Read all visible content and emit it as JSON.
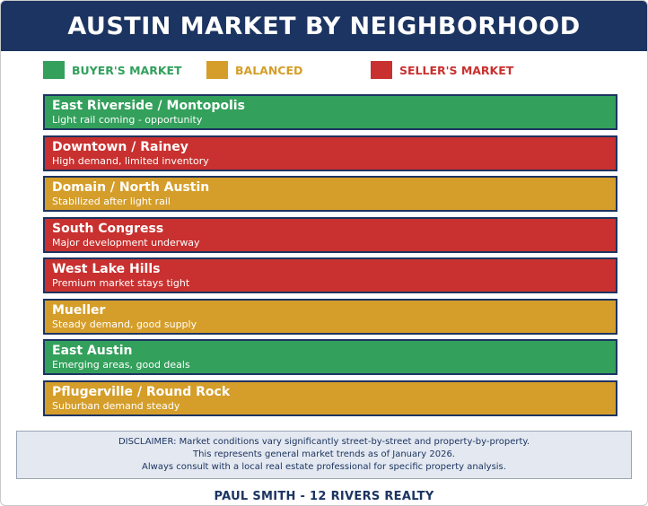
{
  "title": "AUSTIN MARKET BY NEIGHBORHOOD",
  "colors": {
    "header_bg": "#1c3461",
    "buyers": "#33a05c",
    "balanced": "#d59e2a",
    "sellers": "#c8312f",
    "border": "#1c3461"
  },
  "legend": [
    {
      "label": "BUYER'S MARKET",
      "status": "buyers",
      "color": "#33a05c"
    },
    {
      "label": "BALANCED",
      "status": "balanced",
      "color": "#d59e2a"
    },
    {
      "label": "SELLER'S MARKET",
      "status": "sellers",
      "color": "#c8312f"
    }
  ],
  "neighborhoods": [
    {
      "name": "East Riverside / Montopolis",
      "note": "Light rail coming - opportunity",
      "status": "buyers"
    },
    {
      "name": "Downtown / Rainey",
      "note": "High demand, limited inventory",
      "status": "sellers"
    },
    {
      "name": "Domain / North Austin",
      "note": "Stabilized after light rail",
      "status": "balanced"
    },
    {
      "name": "South Congress",
      "note": "Major development underway",
      "status": "sellers"
    },
    {
      "name": "West Lake Hills",
      "note": "Premium market stays tight",
      "status": "sellers"
    },
    {
      "name": "Mueller",
      "note": "Steady demand, good supply",
      "status": "balanced"
    },
    {
      "name": "East Austin",
      "note": "Emerging areas, good deals",
      "status": "buyers"
    },
    {
      "name": "Pflugerville / Round Rock",
      "note": "Suburban demand steady",
      "status": "balanced"
    }
  ],
  "disclaimer": [
    "DISCLAIMER: Market conditions vary significantly street-by-street and property-by-property.",
    "This represents general market trends as of January 2026.",
    "Always consult with a local real estate professional for specific property analysis."
  ],
  "footer": "PAUL SMITH - 12 RIVERS REALTY"
}
